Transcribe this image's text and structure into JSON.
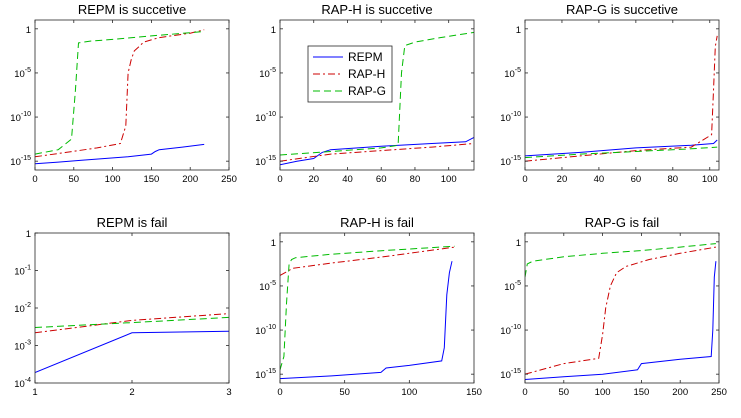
{
  "chart_data": [
    {
      "type": "line",
      "title": "REPM is succetive",
      "xlim": [
        0,
        250
      ],
      "xticks": [
        0,
        50,
        100,
        150,
        200,
        250
      ],
      "ylog": true,
      "ylim_exp": [
        -16,
        1
      ],
      "yticks_exp": [
        -15,
        -10,
        -5,
        0
      ],
      "series": [
        {
          "name": "REPM",
          "color": "#0000ff",
          "dash": "solid",
          "x": [
            0,
            30,
            60,
            90,
            120,
            150,
            155,
            160,
            190,
            218
          ],
          "y": [
            -15.3,
            -15.1,
            -14.9,
            -14.7,
            -14.5,
            -14.2,
            -13.9,
            -13.7,
            -13.4,
            -13.1
          ]
        },
        {
          "name": "RAP-H",
          "color": "#cc0000",
          "dash": "dashdot",
          "x": [
            0,
            40,
            80,
            110,
            117,
            120,
            124,
            128,
            133,
            140,
            160,
            200,
            218
          ],
          "y": [
            -14.5,
            -14.0,
            -13.5,
            -13.0,
            -11.0,
            -5.0,
            -3.5,
            -2.5,
            -2.1,
            -1.5,
            -1.0,
            -0.5,
            -0.1
          ]
        },
        {
          "name": "RAP-G",
          "color": "#00bb00",
          "dash": "dash",
          "x": [
            0,
            30,
            47,
            52,
            56,
            70,
            100,
            150,
            218
          ],
          "y": [
            -14.2,
            -13.7,
            -12.5,
            -7.0,
            -1.6,
            -1.4,
            -1.2,
            -0.8,
            -0.3
          ]
        }
      ]
    },
    {
      "type": "line",
      "title": "RAP-H is succetive",
      "xlim": [
        0,
        115
      ],
      "xticks": [
        0,
        20,
        40,
        60,
        80,
        100
      ],
      "ylog": true,
      "ylim_exp": [
        -16,
        1
      ],
      "yticks_exp": [
        -15,
        -10,
        -5,
        0
      ],
      "series": [
        {
          "name": "REPM",
          "color": "#0000ff",
          "dash": "solid",
          "x": [
            0,
            10,
            20,
            25,
            30,
            60,
            90,
            110,
            115
          ],
          "y": [
            -15.4,
            -15.0,
            -14.7,
            -14.0,
            -13.7,
            -13.3,
            -13.0,
            -12.8,
            -12.3
          ]
        },
        {
          "name": "RAP-H",
          "color": "#cc0000",
          "dash": "dashdot",
          "x": [
            0,
            30,
            60,
            90,
            115
          ],
          "y": [
            -15.0,
            -14.2,
            -13.8,
            -13.4,
            -13.0
          ]
        },
        {
          "name": "RAP-G",
          "color": "#00bb00",
          "dash": "dash",
          "x": [
            0,
            30,
            60,
            70,
            72,
            74,
            80,
            95,
            115
          ],
          "y": [
            -14.3,
            -13.9,
            -13.5,
            -13.2,
            -5.0,
            -1.9,
            -1.5,
            -1.0,
            -0.4
          ]
        }
      ]
    },
    {
      "type": "line",
      "title": "RAP-G is succetive",
      "xlim": [
        0,
        105
      ],
      "xticks": [
        0,
        20,
        40,
        60,
        80,
        100
      ],
      "ylog": true,
      "ylim_exp": [
        -16,
        1
      ],
      "yticks_exp": [
        -15,
        -10,
        -5,
        0
      ],
      "series": [
        {
          "name": "REPM",
          "color": "#0000ff",
          "dash": "solid",
          "x": [
            0,
            30,
            60,
            90,
            102,
            104
          ],
          "y": [
            -14.4,
            -14.0,
            -13.5,
            -13.2,
            -13.0,
            -12.6
          ]
        },
        {
          "name": "RAP-H",
          "color": "#cc0000",
          "dash": "dashdot",
          "x": [
            0,
            30,
            60,
            90,
            101,
            102,
            103,
            104
          ],
          "y": [
            -15.0,
            -14.4,
            -13.8,
            -13.4,
            -12.0,
            -7.0,
            -2.0,
            -0.8
          ]
        },
        {
          "name": "RAP-G",
          "color": "#00bb00",
          "dash": "dash",
          "x": [
            0,
            30,
            60,
            90,
            104
          ],
          "y": [
            -14.6,
            -14.2,
            -13.9,
            -13.6,
            -13.4
          ]
        }
      ]
    },
    {
      "type": "line",
      "title": "REPM is fail",
      "xlim": [
        1,
        3
      ],
      "xticks": [
        1,
        2,
        3
      ],
      "ylog": true,
      "ylim_exp": [
        -4,
        0
      ],
      "yticks_exp": [
        -4,
        -3,
        -2,
        -1,
        0
      ],
      "series": [
        {
          "name": "REPM",
          "color": "#0000ff",
          "dash": "solid",
          "x": [
            1,
            2,
            3
          ],
          "y": [
            -3.72,
            -2.66,
            -2.62
          ]
        },
        {
          "name": "RAP-H",
          "color": "#cc0000",
          "dash": "dashdot",
          "x": [
            1,
            2,
            3
          ],
          "y": [
            -2.66,
            -2.33,
            -2.15
          ]
        },
        {
          "name": "RAP-G",
          "color": "#00bb00",
          "dash": "dash",
          "x": [
            1,
            2,
            3
          ],
          "y": [
            -2.52,
            -2.39,
            -2.25
          ]
        }
      ]
    },
    {
      "type": "line",
      "title": "RAP-H is fail",
      "xlim": [
        0,
        150
      ],
      "xticks": [
        0,
        50,
        100,
        150
      ],
      "ylog": true,
      "ylim_exp": [
        -16,
        1
      ],
      "yticks_exp": [
        -15,
        -10,
        -5,
        0
      ],
      "series": [
        {
          "name": "REPM",
          "color": "#0000ff",
          "dash": "solid",
          "x": [
            0,
            40,
            78,
            82,
            100,
            125,
            127,
            129,
            131,
            133
          ],
          "y": [
            -15.5,
            -15.2,
            -14.8,
            -14.3,
            -14.0,
            -13.5,
            -12.0,
            -6.0,
            -3.5,
            -2.2
          ]
        },
        {
          "name": "RAP-H",
          "color": "#cc0000",
          "dash": "dashdot",
          "x": [
            0,
            10,
            40,
            80,
            110,
            135
          ],
          "y": [
            -3.8,
            -3.0,
            -2.4,
            -1.7,
            -1.1,
            -0.6
          ]
        },
        {
          "name": "RAP-G",
          "color": "#00bb00",
          "dash": "dash",
          "x": [
            0,
            3,
            5,
            7,
            9,
            12,
            40,
            80,
            135
          ],
          "y": [
            -14.5,
            -13.0,
            -7.0,
            -2.5,
            -2.0,
            -1.8,
            -1.4,
            -1.0,
            -0.5
          ]
        }
      ]
    },
    {
      "type": "line",
      "title": "RAP-G is fail",
      "xlim": [
        0,
        250
      ],
      "xticks": [
        0,
        50,
        100,
        150,
        200,
        250
      ],
      "ylog": true,
      "ylim_exp": [
        -16,
        1
      ],
      "yticks_exp": [
        -15,
        -10,
        -5,
        0
      ],
      "series": [
        {
          "name": "REPM",
          "color": "#0000ff",
          "dash": "solid",
          "x": [
            0,
            50,
            100,
            145,
            150,
            200,
            240,
            242,
            244,
            246
          ],
          "y": [
            -15.6,
            -15.3,
            -15.0,
            -14.5,
            -13.8,
            -13.3,
            -13.0,
            -10.0,
            -4.0,
            -2.2
          ]
        },
        {
          "name": "RAP-H",
          "color": "#cc0000",
          "dash": "dashdot",
          "x": [
            0,
            50,
            95,
            100,
            104,
            110,
            118,
            130,
            160,
            200,
            246
          ],
          "y": [
            -15.0,
            -13.8,
            -13.2,
            -10.5,
            -7.5,
            -5.0,
            -3.5,
            -2.8,
            -2.0,
            -1.3,
            -0.6
          ]
        },
        {
          "name": "RAP-G",
          "color": "#00bb00",
          "dash": "dash",
          "x": [
            0,
            3,
            10,
            50,
            100,
            150,
            200,
            246
          ],
          "y": [
            -4.0,
            -2.5,
            -2.2,
            -1.7,
            -1.3,
            -1.0,
            -0.6,
            -0.2
          ]
        }
      ]
    }
  ],
  "legend": {
    "location": "inside-top-left of second panel",
    "entries": [
      {
        "label": "REPM",
        "color": "#0000ff",
        "dash": "solid"
      },
      {
        "label": "RAP-H",
        "color": "#cc0000",
        "dash": "dashdot"
      },
      {
        "label": "RAP-G",
        "color": "#00bb00",
        "dash": "dash"
      }
    ]
  }
}
